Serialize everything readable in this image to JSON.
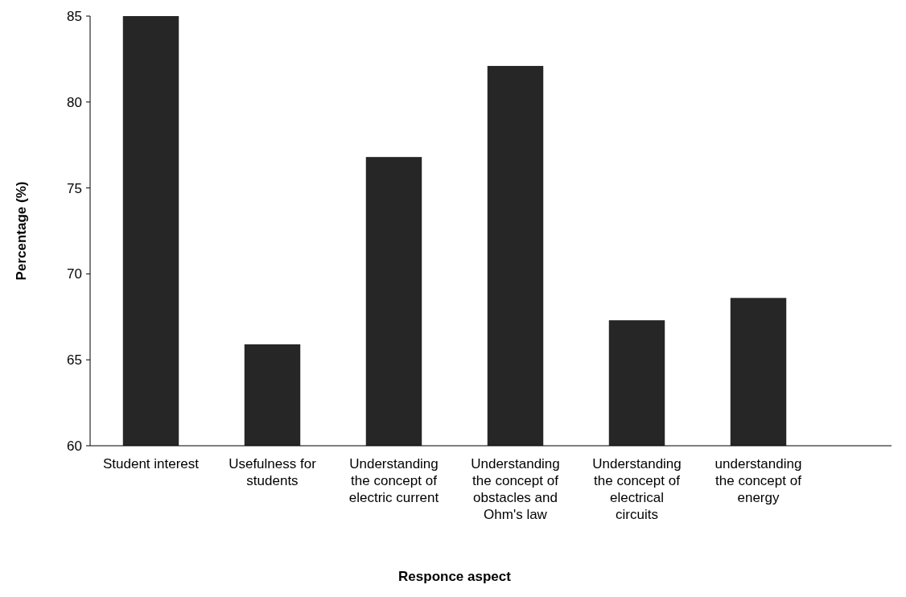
{
  "chart_data": {
    "type": "bar",
    "xlabel": "Responce aspect",
    "ylabel": "Percentage (%)",
    "categories": [
      "Student interest",
      "Usefulness for students",
      "Understanding the concept of electric current",
      "Understanding the concept of obstacles and Ohm's law",
      "Understanding the concept of electrical circuits",
      "understanding the concept of energy"
    ],
    "values": [
      85,
      65.9,
      76.8,
      82.1,
      67.3,
      68.6
    ],
    "color": "#262626",
    "ylim": [
      60,
      85
    ],
    "yticks": [
      60,
      65,
      70,
      75,
      80,
      85
    ],
    "grid": false
  }
}
